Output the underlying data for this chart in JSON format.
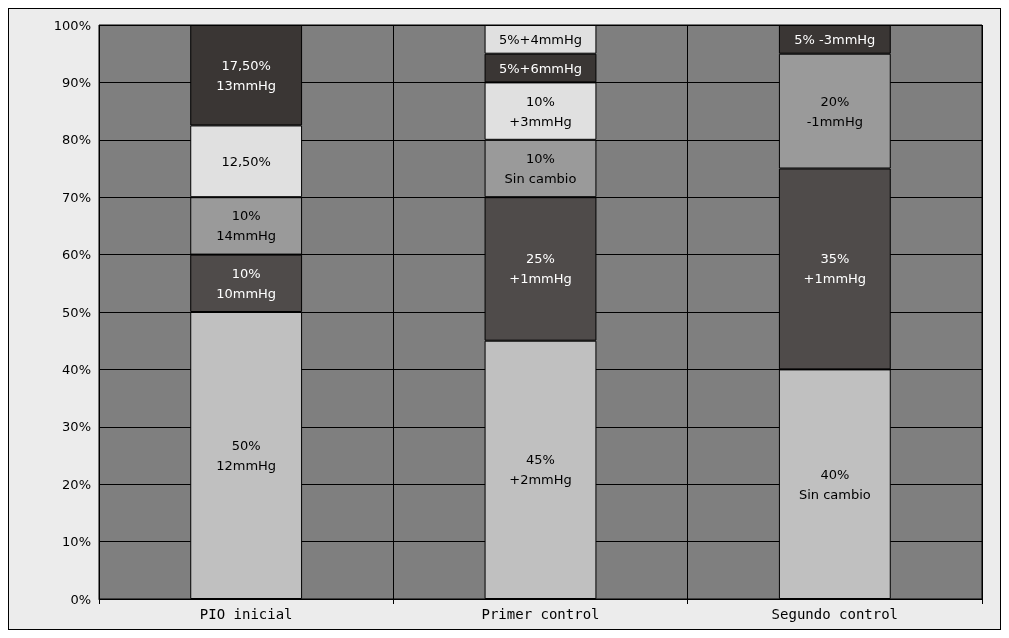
{
  "chart_data": {
    "type": "bar",
    "stacked": true,
    "categories": [
      "PIO inicial",
      "Primer control",
      "Segundo control"
    ],
    "series": [
      {
        "values": [
          50,
          45,
          40
        ],
        "colors": [
          "#c0c0c0",
          "#c0c0c0",
          "#c0c0c0"
        ],
        "value_labels": [
          "50%\n12mmHg",
          "45%\n+2mmHg",
          "40%\nSin cambio"
        ]
      },
      {
        "values": [
          10,
          25,
          35
        ],
        "colors": [
          "#4f4b4a",
          "#4f4b4a",
          "#4f4b4a"
        ],
        "value_labels": [
          "10%\n10mmHg",
          "25%\n+1mmHg",
          "35%\n+1mmHg"
        ]
      },
      {
        "values": [
          10,
          10,
          20
        ],
        "colors": [
          "#9a9a9a",
          "#9a9a9a",
          "#9a9a9a"
        ],
        "value_labels": [
          "10%\n14mmHg",
          "10%\nSin cambio",
          "20%\n-1mmHg"
        ]
      },
      {
        "values": [
          12.5,
          10,
          5
        ],
        "colors": [
          "#e0e0e0",
          "#e0e0e0",
          "#3a3634"
        ],
        "value_labels": [
          "12,50%",
          "10%\n+3mmHg",
          "5% -3mmHg"
        ]
      },
      {
        "values": [
          17.5,
          5,
          null
        ],
        "colors": [
          "#3a3634",
          "#3a3634",
          null
        ],
        "value_labels": [
          "17,50%\n13mmHg",
          "5%+6mmHg",
          null
        ]
      },
      {
        "values": [
          null,
          5,
          null
        ],
        "colors": [
          null,
          "#e0e0e0",
          null
        ],
        "value_labels": [
          null,
          "5%+4mmHg",
          null
        ]
      }
    ],
    "ylim": [
      0,
      100
    ],
    "yticks": [
      {
        "value": 0,
        "label": "0%"
      },
      {
        "value": 10,
        "label": "10%"
      },
      {
        "value": 20,
        "label": "20%"
      },
      {
        "value": 30,
        "label": "30%"
      },
      {
        "value": 40,
        "label": "40%"
      },
      {
        "value": 50,
        "label": "50%"
      },
      {
        "value": 60,
        "label": "60%"
      },
      {
        "value": 70,
        "label": "70%"
      },
      {
        "value": 80,
        "label": "80%"
      },
      {
        "value": 90,
        "label": "90%"
      },
      {
        "value": 100,
        "label": "100%"
      }
    ],
    "grid": true
  }
}
